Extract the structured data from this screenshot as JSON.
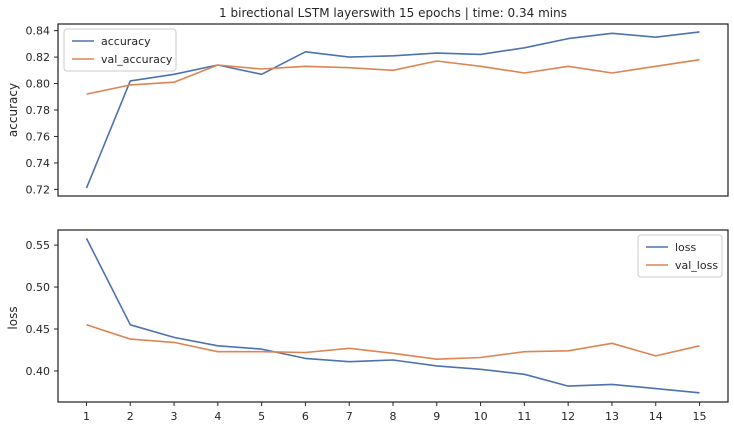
{
  "chart_data": [
    {
      "type": "line",
      "title": "1 birectional LSTM layerswith 15 epochs | time: 0.34 mins",
      "xlabel": "",
      "ylabel": "accuracy",
      "x": [
        1,
        2,
        3,
        4,
        5,
        6,
        7,
        8,
        9,
        10,
        11,
        12,
        13,
        14,
        15
      ],
      "x_tick_labels_visible": false,
      "ylim": [
        0.715,
        0.845
      ],
      "y_ticks": [
        0.72,
        0.74,
        0.76,
        0.78,
        0.8,
        0.82,
        0.84
      ],
      "y_tick_labels": [
        "0.72",
        "0.74",
        "0.76",
        "0.78",
        "0.80",
        "0.82",
        "0.84"
      ],
      "legend_position": "upper left",
      "grid": false,
      "series": [
        {
          "name": "accuracy",
          "color": "#4c72b0",
          "values": [
            0.721,
            0.802,
            0.807,
            0.814,
            0.807,
            0.824,
            0.82,
            0.821,
            0.823,
            0.822,
            0.827,
            0.834,
            0.838,
            0.835,
            0.839
          ]
        },
        {
          "name": "val_accuracy",
          "color": "#dd8452",
          "values": [
            0.792,
            0.799,
            0.801,
            0.814,
            0.811,
            0.813,
            0.812,
            0.81,
            0.817,
            0.813,
            0.808,
            0.813,
            0.808,
            0.813,
            0.818
          ]
        }
      ]
    },
    {
      "type": "line",
      "title": "",
      "xlabel": "",
      "ylabel": "loss",
      "x": [
        1,
        2,
        3,
        4,
        5,
        6,
        7,
        8,
        9,
        10,
        11,
        12,
        13,
        14,
        15
      ],
      "x_tick_labels": [
        "1",
        "2",
        "3",
        "4",
        "5",
        "6",
        "7",
        "8",
        "9",
        "10",
        "11",
        "12",
        "13",
        "14",
        "15"
      ],
      "ylim": [
        0.363,
        0.568
      ],
      "y_ticks": [
        0.4,
        0.45,
        0.5,
        0.55
      ],
      "y_tick_labels": [
        "0.40",
        "0.45",
        "0.50",
        "0.55"
      ],
      "legend_position": "upper right",
      "grid": false,
      "series": [
        {
          "name": "loss",
          "color": "#4c72b0",
          "values": [
            0.558,
            0.455,
            0.44,
            0.43,
            0.426,
            0.415,
            0.411,
            0.413,
            0.406,
            0.402,
            0.396,
            0.382,
            0.384,
            0.379,
            0.374
          ]
        },
        {
          "name": "val_loss",
          "color": "#dd8452",
          "values": [
            0.455,
            0.438,
            0.434,
            0.423,
            0.423,
            0.422,
            0.427,
            0.421,
            0.414,
            0.416,
            0.423,
            0.424,
            0.433,
            0.418,
            0.43
          ]
        }
      ]
    }
  ]
}
